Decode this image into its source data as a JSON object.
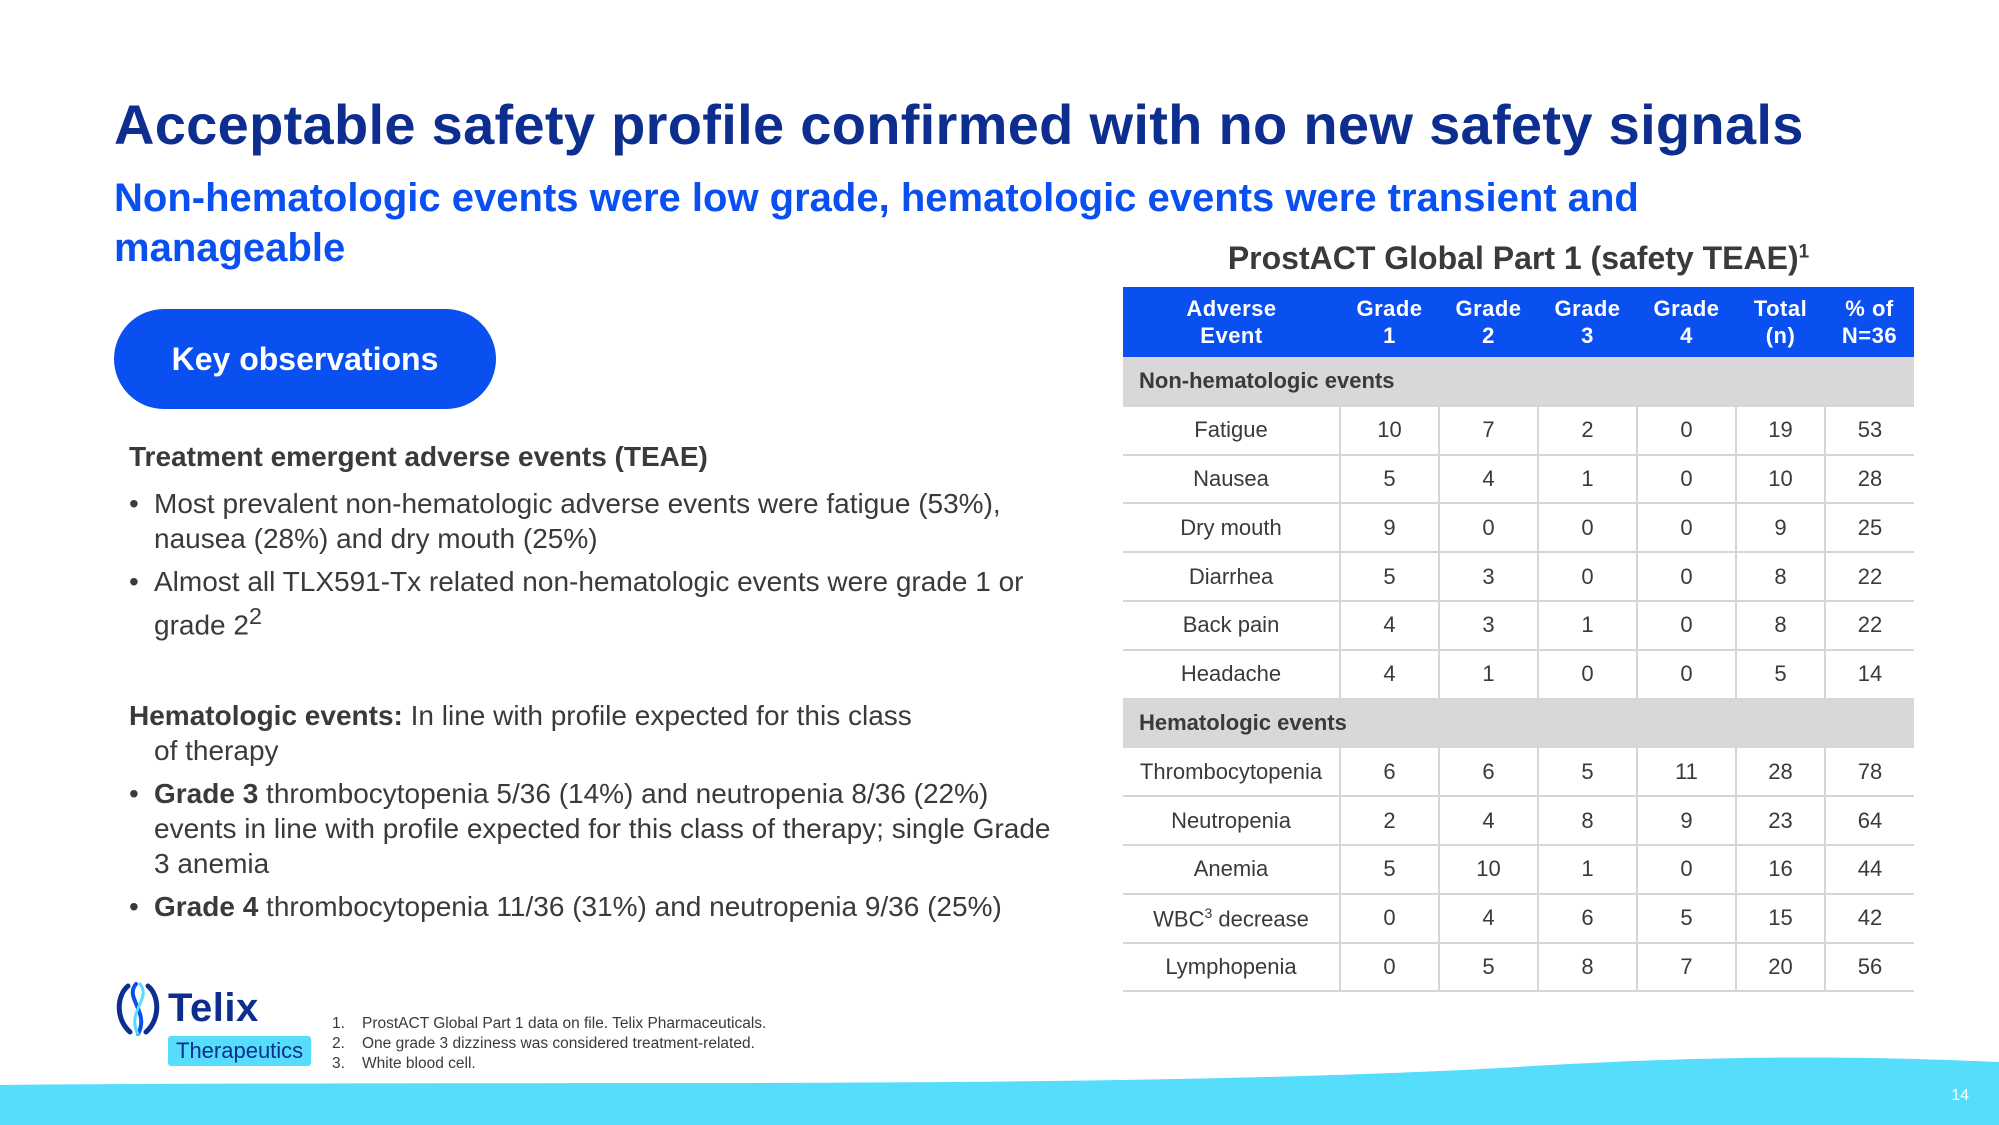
{
  "title": "Acceptable safety profile confirmed with no new safety signals",
  "subtitle": "Non-hematologic events were low grade, hematologic events were transient and manageable",
  "key_observations_label": "Key observations",
  "left": {
    "teae_heading": "Treatment emergent adverse events (TEAE)",
    "teae_bullet1": "Most prevalent non-hematologic adverse events were fatigue (53%), nausea (28%) and dry mouth (25%)",
    "teae_bullet2": "Almost all TLX591-Tx related non-hematologic events were grade 1 or grade 2",
    "teae_bullet2_sup": "2",
    "heme_heading": "Hematologic events:",
    "heme_text_line1": " In line with profile expected for this class",
    "heme_text_line2": "of therapy",
    "heme_bullet1_bold": "Grade 3",
    "heme_bullet1": " thrombocytopenia 5/36 (14%) and neutropenia 8/36 (22%) events in line with profile expected for this class of therapy; single Grade 3 anemia",
    "heme_bullet2_bold": "Grade 4",
    "heme_bullet2": " thrombocytopenia 11/36 (31%) and neutropenia 9/36 (25%)"
  },
  "table": {
    "title": "ProstACT Global Part 1 (safety TEAE)",
    "title_sup": "1",
    "headers": [
      [
        "Adverse",
        "Event"
      ],
      [
        "Grade",
        "1"
      ],
      [
        "Grade",
        "2"
      ],
      [
        "Grade",
        "3"
      ],
      [
        "Grade",
        "4"
      ],
      [
        "Total",
        "(n)"
      ],
      [
        "% of",
        "N=36"
      ]
    ],
    "group1": "Non-hematologic events",
    "group1_rows": [
      [
        "Fatigue",
        "10",
        "7",
        "2",
        "0",
        "19",
        "53"
      ],
      [
        "Nausea",
        "5",
        "4",
        "1",
        "0",
        "10",
        "28"
      ],
      [
        "Dry mouth",
        "9",
        "0",
        "0",
        "0",
        "9",
        "25"
      ],
      [
        "Diarrhea",
        "5",
        "3",
        "0",
        "0",
        "8",
        "22"
      ],
      [
        "Back pain",
        "4",
        "3",
        "1",
        "0",
        "8",
        "22"
      ],
      [
        "Headache",
        "4",
        "1",
        "0",
        "0",
        "5",
        "14"
      ]
    ],
    "group2": "Hematologic events",
    "group2_rows": [
      [
        "Thrombocytopenia",
        "6",
        "6",
        "5",
        "11",
        "28",
        "78"
      ],
      [
        "Neutropenia",
        "2",
        "4",
        "8",
        "9",
        "23",
        "64"
      ],
      [
        "Anemia",
        "5",
        "10",
        "1",
        "0",
        "16",
        "44"
      ],
      [
        "WBC",
        "0",
        "4",
        "6",
        "5",
        "15",
        "42"
      ],
      [
        "Lymphopenia",
        "0",
        "5",
        "8",
        "7",
        "20",
        "56"
      ]
    ],
    "wbc_sup": "3",
    "wbc_suffix": " decrease"
  },
  "logo": {
    "name": "Telix",
    "tagline": "Therapeutics"
  },
  "footnotes": [
    {
      "num": "1.",
      "text": "ProstACT Global Part 1 data on file. Telix Pharmaceuticals."
    },
    {
      "num": "2.",
      "text": "One grade 3 dizziness was considered treatment-related."
    },
    {
      "num": "3.",
      "text": "White blood cell."
    }
  ],
  "page_number": "14",
  "colors": {
    "title": "#0d2e8f",
    "accent": "#0a4ff0",
    "wave": "#55ddfb",
    "group_row": "#d8d8da"
  }
}
